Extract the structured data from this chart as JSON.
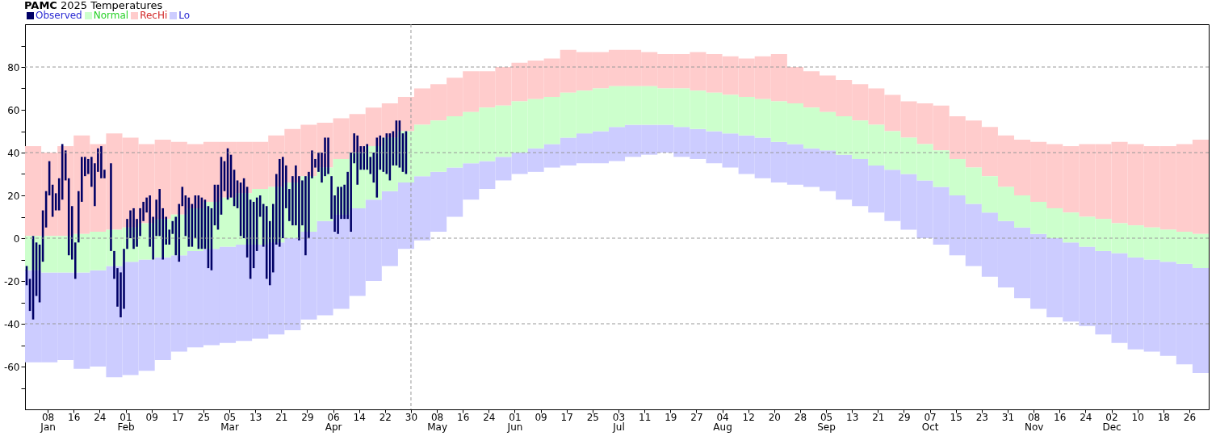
{
  "chart_data": {
    "type": "bar",
    "title": "PAMC 2025 Temperatures",
    "legend": "top left",
    "xlim": [
      "2025-01-01",
      "2026-01-01"
    ],
    "ylim": [
      -80,
      100
    ],
    "yticks": [
      {
        "value": -70,
        "label": null
      },
      -60,
      {
        "value": -50,
        "label": null
      },
      -40,
      {
        "value": -30,
        "label": null
      },
      -20,
      {
        "value": -10,
        "label": null
      },
      0,
      {
        "value": 10,
        "label": null
      },
      20,
      {
        "value": 30,
        "label": null
      },
      40,
      {
        "value": 50,
        "label": null
      },
      60,
      {
        "value": 70,
        "label": null
      },
      80,
      {
        "value": 90,
        "label": null
      }
    ],
    "xticks": [
      {
        "value": "2025-01-08",
        "label": "08\nJan"
      },
      {
        "value": "2025-01-16",
        "label": "16"
      },
      {
        "value": "2025-01-24",
        "label": "24"
      },
      {
        "value": "2025-02-01",
        "label": "01\nFeb"
      },
      {
        "value": "2025-02-09",
        "label": "09"
      },
      {
        "value": "2025-02-17",
        "label": "17"
      },
      {
        "value": "2025-02-25",
        "label": "25"
      },
      {
        "value": "2025-03-05",
        "label": "05\nMar"
      },
      {
        "value": "2025-03-13",
        "label": "13"
      },
      {
        "value": "2025-03-21",
        "label": "21"
      },
      {
        "value": "2025-03-29",
        "label": "29"
      },
      {
        "value": "2025-04-06",
        "label": "06\nApr"
      },
      {
        "value": "2025-04-14",
        "label": "14"
      },
      {
        "value": "2025-04-22",
        "label": "22"
      },
      {
        "value": "2025-04-30",
        "label": "30"
      },
      {
        "value": "2025-05-08",
        "label": "08\nMay"
      },
      {
        "value": "2025-05-16",
        "label": "16"
      },
      {
        "value": "2025-05-24",
        "label": "24"
      },
      {
        "value": "2025-06-01",
        "label": "01\nJun"
      },
      {
        "value": "2025-06-09",
        "label": "09"
      },
      {
        "value": "2025-06-17",
        "label": "17"
      },
      {
        "value": "2025-06-25",
        "label": "25"
      },
      {
        "value": "2025-07-03",
        "label": "03\nJul"
      },
      {
        "value": "2025-07-11",
        "label": "11"
      },
      {
        "value": "2025-07-19",
        "label": "19"
      },
      {
        "value": "2025-07-27",
        "label": "27"
      },
      {
        "value": "2025-08-04",
        "label": "04\nAug"
      },
      {
        "value": "2025-08-12",
        "label": "12"
      },
      {
        "value": "2025-08-20",
        "label": "20"
      },
      {
        "value": "2025-08-28",
        "label": "28"
      },
      {
        "value": "2025-09-05",
        "label": "05\nSep"
      },
      {
        "value": "2025-09-13",
        "label": "13"
      },
      {
        "value": "2025-09-21",
        "label": "21"
      },
      {
        "value": "2025-09-29",
        "label": "29"
      },
      {
        "value": "2025-10-07",
        "label": "07\nOct"
      },
      {
        "value": "2025-10-15",
        "label": "15"
      },
      {
        "value": "2025-10-23",
        "label": "23"
      },
      {
        "value": "2025-10-31",
        "label": "31"
      },
      {
        "value": "2025-11-08",
        "label": "08\nNov"
      },
      {
        "value": "2025-11-16",
        "label": "16"
      },
      {
        "value": "2025-11-24",
        "label": "24"
      },
      {
        "value": "2025-12-02",
        "label": "02\nDec"
      },
      {
        "value": "2025-12-10",
        "label": "10"
      },
      {
        "value": "2025-12-18",
        "label": "18"
      },
      {
        "value": "2025-12-26",
        "label": "26"
      }
    ],
    "ref_lines": [
      {
        "axis": "y",
        "value": 80,
        "line_style": "dashed",
        "color": "#999999"
      },
      {
        "axis": "y",
        "value": 40,
        "line_style": "dashed",
        "color": "#999999"
      },
      {
        "axis": "y",
        "value": 0,
        "line_style": "dashed",
        "color": "#999999"
      },
      {
        "axis": "y",
        "value": -40,
        "line_style": "dashed",
        "color": "#999999"
      },
      {
        "axis": "x",
        "value": "2025-04-30",
        "line_style": "dashed",
        "color": "#999999"
      }
    ],
    "x": [
      "2025-01-01",
      "2025-01-06",
      "2025-01-11",
      "2025-01-16",
      "2025-01-21",
      "2025-01-26",
      "2025-01-31",
      "2025-02-05",
      "2025-02-10",
      "2025-02-15",
      "2025-02-20",
      "2025-02-25",
      "2025-03-02",
      "2025-03-07",
      "2025-03-12",
      "2025-03-17",
      "2025-03-22",
      "2025-03-27",
      "2025-04-01",
      "2025-04-06",
      "2025-04-11",
      "2025-04-16",
      "2025-04-21",
      "2025-04-26",
      "2025-05-01",
      "2025-05-06",
      "2025-05-11",
      "2025-05-16",
      "2025-05-21",
      "2025-05-26",
      "2025-05-31",
      "2025-06-05",
      "2025-06-10",
      "2025-06-15",
      "2025-06-20",
      "2025-06-25",
      "2025-06-30",
      "2025-07-05",
      "2025-07-10",
      "2025-07-15",
      "2025-07-20",
      "2025-07-25",
      "2025-07-30",
      "2025-08-04",
      "2025-08-09",
      "2025-08-14",
      "2025-08-19",
      "2025-08-24",
      "2025-08-29",
      "2025-09-03",
      "2025-09-08",
      "2025-09-13",
      "2025-09-18",
      "2025-09-23",
      "2025-09-28",
      "2025-10-03",
      "2025-10-08",
      "2025-10-13",
      "2025-10-18",
      "2025-10-23",
      "2025-10-28",
      "2025-11-02",
      "2025-11-07",
      "2025-11-12",
      "2025-11-17",
      "2025-11-22",
      "2025-11-27",
      "2025-12-02",
      "2025-12-07",
      "2025-12-12",
      "2025-12-17",
      "2025-12-22",
      "2025-12-27"
    ],
    "series": [
      {
        "name": "Observed",
        "color": "#000066",
        "x": [
          "2025-01-01",
          "2025-01-02",
          "2025-01-03",
          "2025-01-04",
          "2025-01-05",
          "2025-01-06",
          "2025-01-07",
          "2025-01-08",
          "2025-01-09",
          "2025-01-10",
          "2025-01-11",
          "2025-01-12",
          "2025-01-13",
          "2025-01-14",
          "2025-01-15",
          "2025-01-16",
          "2025-01-17",
          "2025-01-18",
          "2025-01-19",
          "2025-01-20",
          "2025-01-21",
          "2025-01-22",
          "2025-01-23",
          "2025-01-24",
          "2025-01-25",
          "2025-01-26",
          "2025-01-27",
          "2025-01-28",
          "2025-01-29",
          "2025-01-30",
          "2025-01-31",
          "2025-02-01",
          "2025-02-02",
          "2025-02-03",
          "2025-02-04",
          "2025-02-05",
          "2025-02-06",
          "2025-02-07",
          "2025-02-08",
          "2025-02-09",
          "2025-02-10",
          "2025-02-11",
          "2025-02-12",
          "2025-02-13",
          "2025-02-14",
          "2025-02-15",
          "2025-02-16",
          "2025-02-17",
          "2025-02-18",
          "2025-02-19",
          "2025-02-20",
          "2025-02-21",
          "2025-02-22",
          "2025-02-23",
          "2025-02-24",
          "2025-02-25",
          "2025-02-26",
          "2025-02-27",
          "2025-02-28",
          "2025-03-01",
          "2025-03-02",
          "2025-03-03",
          "2025-03-04",
          "2025-03-05",
          "2025-03-06",
          "2025-03-07",
          "2025-03-08",
          "2025-03-09",
          "2025-03-10",
          "2025-03-11",
          "2025-03-12",
          "2025-03-13",
          "2025-03-14",
          "2025-03-15",
          "2025-03-16",
          "2025-03-17",
          "2025-03-18",
          "2025-03-19",
          "2025-03-20",
          "2025-03-21",
          "2025-03-22",
          "2025-03-23",
          "2025-03-24",
          "2025-03-25",
          "2025-03-26",
          "2025-03-27",
          "2025-03-28",
          "2025-03-29",
          "2025-03-30",
          "2025-03-31",
          "2025-04-01",
          "2025-04-02",
          "2025-04-03",
          "2025-04-04",
          "2025-04-05",
          "2025-04-06",
          "2025-04-07",
          "2025-04-08",
          "2025-04-09",
          "2025-04-10",
          "2025-04-11",
          "2025-04-12",
          "2025-04-13",
          "2025-04-14",
          "2025-04-15",
          "2025-04-16",
          "2025-04-17",
          "2025-04-18",
          "2025-04-19",
          "2025-04-20",
          "2025-04-21",
          "2025-04-22",
          "2025-04-23",
          "2025-04-24",
          "2025-04-25",
          "2025-04-26",
          "2025-04-27",
          "2025-04-28"
        ],
        "base": [
          -22,
          -34,
          -38,
          -27,
          -30,
          -11,
          5,
          20,
          10,
          13,
          13,
          18,
          27,
          -8,
          -10,
          -19,
          -2,
          17,
          29,
          30,
          24,
          15,
          31,
          28,
          28,
          null,
          -6,
          -19,
          -32,
          -37,
          -33,
          -5,
          0,
          -5,
          -4,
          1,
          8,
          12,
          -4,
          -10,
          1,
          1,
          -10,
          -3,
          -3,
          2,
          -8,
          -11,
          15,
          1,
          -4,
          -4,
          0,
          -5,
          -5,
          -5,
          -14,
          -15,
          6,
          4,
          11,
          22,
          18,
          19,
          15,
          14,
          1,
          0,
          -9,
          -19,
          -14,
          -6,
          10,
          -4,
          -19,
          -22,
          -16,
          -3,
          -4,
          0,
          14,
          8,
          6,
          6,
          -1,
          6,
          -8,
          0,
          28,
          33,
          31,
          26,
          29,
          30,
          9,
          3,
          2,
          9,
          9,
          9,
          3,
          35,
          25,
          32,
          32,
          32,
          30,
          26,
          19,
          32,
          31,
          30,
          27,
          34,
          34,
          33,
          31,
          30
        ],
        "values": [
          9,
          15,
          39,
          25,
          27,
          24,
          17,
          16,
          15,
          8,
          15,
          26,
          14,
          36,
          25,
          17,
          24,
          21,
          9,
          7,
          14,
          20,
          11,
          15,
          4,
          null,
          41,
          13,
          18,
          21,
          28,
          14,
          13,
          19,
          13,
          13,
          9,
          7,
          24,
          20,
          17,
          22,
          24,
          13,
          7,
          6,
          18,
          27,
          9,
          19,
          23,
          20,
          20,
          25,
          24,
          23,
          29,
          29,
          19,
          21,
          27,
          14,
          24,
          20,
          17,
          13,
          25,
          28,
          33,
          37,
          31,
          25,
          10,
          20,
          34,
          30,
          32,
          33,
          41,
          38,
          20,
          15,
          23,
          28,
          30,
          21,
          37,
          31,
          13,
          4,
          9,
          14,
          18,
          17,
          20,
          17,
          22,
          15,
          16,
          22,
          37,
          14,
          23,
          11,
          11,
          12,
          8,
          14,
          28,
          16,
          16,
          19,
          22,
          16,
          21,
          22,
          18,
          20
        ]
      },
      {
        "name": "Normal",
        "color": "#ccffcc",
        "base": [
          -15,
          -16,
          -16,
          -16,
          -15,
          -13,
          -11,
          -10,
          -9,
          -8,
          -6,
          -5,
          -4,
          -3,
          -3,
          -2,
          0,
          3,
          8,
          11,
          14,
          18,
          22,
          26,
          29,
          31,
          33,
          35,
          36,
          38,
          40,
          42,
          44,
          47,
          49,
          50,
          52,
          53,
          53,
          53,
          52,
          51,
          50,
          49,
          48,
          47,
          45,
          44,
          42,
          41,
          39,
          37,
          34,
          32,
          30,
          27,
          24,
          20,
          16,
          12,
          8,
          5,
          2,
          0,
          -2,
          -4,
          -6,
          -7,
          -9,
          -10,
          -11,
          -12,
          -14
        ],
        "values": [
          16,
          17,
          17,
          18,
          18,
          17,
          16,
          17,
          18,
          19,
          20,
          22,
          23,
          24,
          26,
          26,
          26,
          26,
          25,
          26,
          26,
          25,
          25,
          24,
          24,
          24,
          24,
          24,
          25,
          24,
          24,
          23,
          22,
          21,
          20,
          20,
          19,
          18,
          18,
          17,
          18,
          18,
          18,
          18,
          18,
          18,
          19,
          19,
          19,
          18,
          18,
          18,
          19,
          18,
          17,
          17,
          17,
          17,
          17,
          17,
          16,
          15,
          15,
          14,
          14,
          14,
          15,
          14,
          15,
          15,
          15,
          15,
          16
        ]
      },
      {
        "name": "RecHi",
        "color": "#ffcccc",
        "base": [
          1,
          1,
          1,
          2,
          3,
          4,
          5,
          7,
          9,
          11,
          14,
          17,
          19,
          21,
          23,
          24,
          26,
          29,
          33,
          37,
          40,
          43,
          47,
          50,
          53,
          55,
          57,
          59,
          61,
          62,
          64,
          65,
          66,
          68,
          69,
          70,
          71,
          71,
          71,
          70,
          70,
          69,
          68,
          67,
          66,
          65,
          64,
          63,
          61,
          59,
          57,
          55,
          53,
          50,
          47,
          44,
          41,
          37,
          33,
          29,
          24,
          20,
          17,
          14,
          12,
          10,
          9,
          7,
          6,
          5,
          4,
          3,
          2
        ],
        "values": [
          42,
          39,
          42,
          46,
          41,
          45,
          42,
          37,
          37,
          34,
          30,
          28,
          26,
          24,
          22,
          24,
          25,
          24,
          21,
          19,
          18,
          18,
          16,
          16,
          17,
          17,
          18,
          19,
          17,
          18,
          18,
          18,
          18,
          20,
          18,
          17,
          17,
          17,
          16,
          16,
          16,
          18,
          18,
          18,
          18,
          20,
          22,
          17,
          17,
          17,
          17,
          17,
          17,
          17,
          17,
          19,
          21,
          20,
          22,
          23,
          24,
          26,
          28,
          30,
          31,
          34,
          35,
          38,
          38,
          38,
          39,
          41,
          44
        ]
      },
      {
        "name": "Lo",
        "color": "#ccccff",
        "base": [
          -58,
          -58,
          -57,
          -61,
          -60,
          -65,
          -64,
          -62,
          -57,
          -53,
          -51,
          -50,
          -49,
          -48,
          -47,
          -45,
          -43,
          -38,
          -36,
          -33,
          -27,
          -20,
          -13,
          -5,
          -1,
          3,
          10,
          18,
          23,
          27,
          30,
          31,
          33,
          34,
          35,
          35,
          36,
          38,
          39,
          40,
          38,
          37,
          35,
          33,
          30,
          28,
          26,
          25,
          24,
          22,
          18,
          15,
          12,
          8,
          4,
          0,
          -3,
          -8,
          -13,
          -18,
          -23,
          -28,
          -33,
          -37,
          -39,
          -41,
          -45,
          -49,
          -52,
          -53,
          -55,
          -59,
          -63
        ],
        "values": [
          43,
          42,
          41,
          45,
          45,
          52,
          53,
          52,
          48,
          45,
          45,
          45,
          45,
          45,
          44,
          43,
          43,
          41,
          44,
          44,
          41,
          38,
          35,
          31,
          30,
          28,
          23,
          17,
          13,
          11,
          10,
          11,
          11,
          13,
          14,
          15,
          16,
          15,
          14,
          13,
          14,
          14,
          15,
          16,
          18,
          19,
          19,
          19,
          18,
          19,
          21,
          22,
          22,
          24,
          26,
          27,
          27,
          28,
          29,
          30,
          31,
          33,
          35,
          37,
          37,
          37,
          39,
          42,
          43,
          43,
          44,
          47,
          49
        ]
      }
    ]
  }
}
